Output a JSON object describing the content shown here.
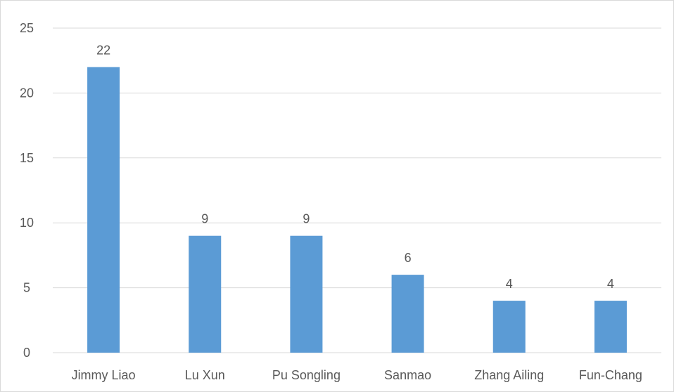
{
  "chart_data": {
    "type": "bar",
    "categories": [
      "Jimmy Liao",
      "Lu Xun",
      "Pu Songling",
      "Sanmao",
      "Zhang Ailing",
      "Fun-Chang"
    ],
    "values": [
      22,
      9,
      9,
      6,
      4,
      4
    ],
    "title": "",
    "xlabel": "",
    "ylabel": "",
    "ylim": [
      0,
      25
    ],
    "yticks": [
      0,
      5,
      10,
      15,
      20,
      25
    ],
    "grid": true,
    "legend": "none",
    "data_labels": true,
    "colors": {
      "bar": "#5b9bd5",
      "grid": "#d9d9d9",
      "text": "#595959"
    }
  }
}
